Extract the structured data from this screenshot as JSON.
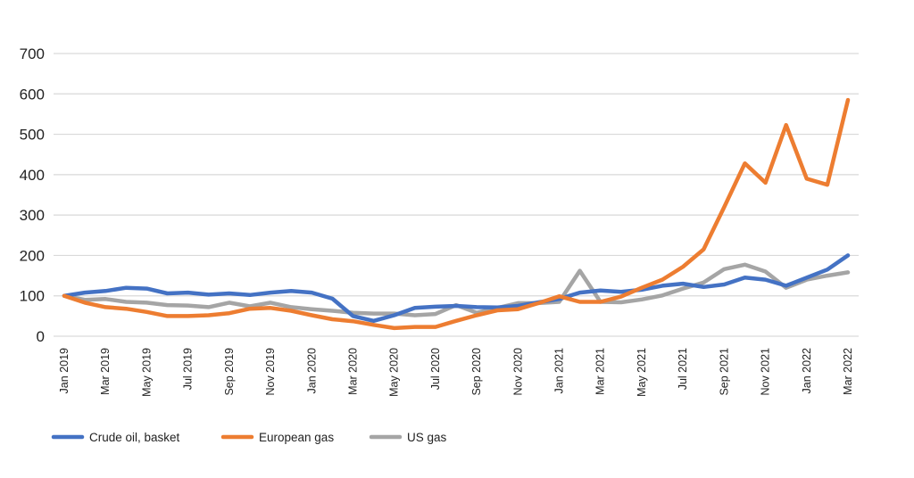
{
  "chart_data": {
    "type": "line",
    "title": "",
    "xlabel": "",
    "ylabel": "",
    "ylim": [
      0,
      700
    ],
    "yticks": [
      0,
      100,
      200,
      300,
      400,
      500,
      600,
      700
    ],
    "grid": true,
    "legend_position": "bottom-left",
    "x": [
      "Jan 2019",
      "Feb 2019",
      "Mar 2019",
      "Apr 2019",
      "May 2019",
      "Jun 2019",
      "Jul 2019",
      "Aug 2019",
      "Sep 2019",
      "Oct 2019",
      "Nov 2019",
      "Dec 2019",
      "Jan 2020",
      "Feb 2020",
      "Mar 2020",
      "Apr 2020",
      "May 2020",
      "Jun 2020",
      "Jul 2020",
      "Aug 2020",
      "Sep 2020",
      "Oct 2020",
      "Nov 2020",
      "Dec 2020",
      "Jan 2021",
      "Feb 2021",
      "Mar 2021",
      "Apr 2021",
      "May 2021",
      "Jun 2021",
      "Jul 2021",
      "Aug 2021",
      "Sep 2021",
      "Oct 2021",
      "Nov 2021",
      "Dec 2021",
      "Jan 2022",
      "Feb 2022",
      "Mar 2022"
    ],
    "xtick_labels": [
      "Jan 2019",
      "Mar 2019",
      "May 2019",
      "Jul 2019",
      "Sep 2019",
      "Nov 2019",
      "Jan 2020",
      "Mar 2020",
      "May 2020",
      "Jul 2020",
      "Sep 2020",
      "Nov 2020",
      "Jan 2021",
      "Mar 2021",
      "May 2021",
      "Jul 2021",
      "Sep 2021",
      "Nov 2021",
      "Jan 2022",
      "Mar 2022"
    ],
    "series": [
      {
        "name": "Crude oil, basket",
        "color": "#4472c4",
        "values": [
          100,
          108,
          112,
          120,
          118,
          106,
          108,
          103,
          106,
          102,
          108,
          112,
          108,
          93,
          50,
          38,
          52,
          70,
          73,
          75,
          72,
          71,
          75,
          84,
          92,
          108,
          113,
          110,
          115,
          125,
          130,
          122,
          128,
          145,
          140,
          125,
          145,
          165,
          200
        ]
      },
      {
        "name": "European gas",
        "color": "#ed7d31",
        "values": [
          100,
          83,
          72,
          68,
          60,
          50,
          50,
          52,
          57,
          68,
          70,
          63,
          52,
          42,
          37,
          28,
          20,
          23,
          23,
          38,
          52,
          64,
          67,
          82,
          99,
          85,
          85,
          98,
          120,
          140,
          172,
          215,
          320,
          428,
          380,
          523,
          390,
          375,
          585
        ]
      },
      {
        "name": "US gas",
        "color": "#a5a5a5",
        "values": [
          100,
          90,
          92,
          85,
          83,
          77,
          76,
          72,
          83,
          74,
          83,
          72,
          67,
          63,
          58,
          56,
          56,
          52,
          55,
          77,
          58,
          70,
          82,
          82,
          85,
          162,
          85,
          84,
          91,
          101,
          118,
          133,
          166,
          177,
          160,
          120,
          140,
          150,
          158
        ]
      }
    ]
  }
}
